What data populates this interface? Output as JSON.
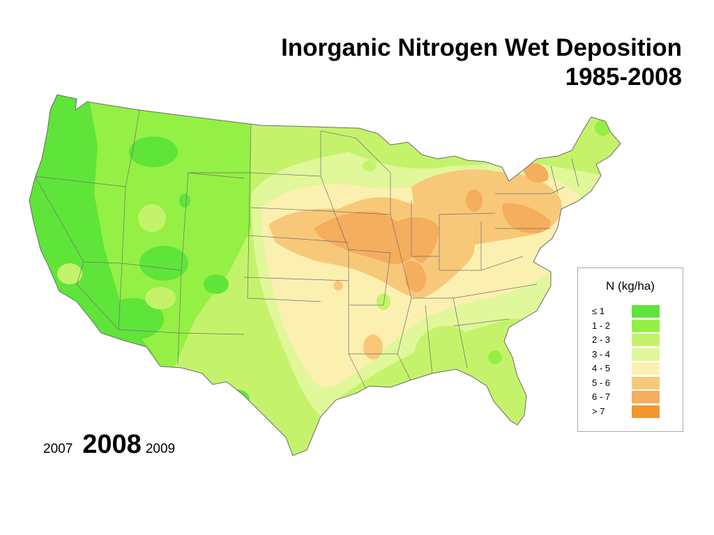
{
  "title": {
    "line1": "Inorganic Nitrogen Wet Deposition",
    "line2": "1985-2008"
  },
  "legend": {
    "title": "N  (kg/ha)",
    "items": [
      {
        "label": "≤ 1",
        "color": "#5fe43a"
      },
      {
        "label": "1 - 2",
        "color": "#94f044"
      },
      {
        "label": "2 - 3",
        "color": "#c4f36b"
      },
      {
        "label": "3 - 4",
        "color": "#e0f79a"
      },
      {
        "label": "4 - 5",
        "color": "#fbf0b0"
      },
      {
        "label": "5 - 6",
        "color": "#f8c879"
      },
      {
        "label": "6 - 7",
        "color": "#f5ad5e"
      },
      {
        "label": "> 7",
        "color": "#f5952e"
      }
    ]
  },
  "year_nav": {
    "previous": "2007",
    "current": "2008",
    "next": "2009"
  }
}
